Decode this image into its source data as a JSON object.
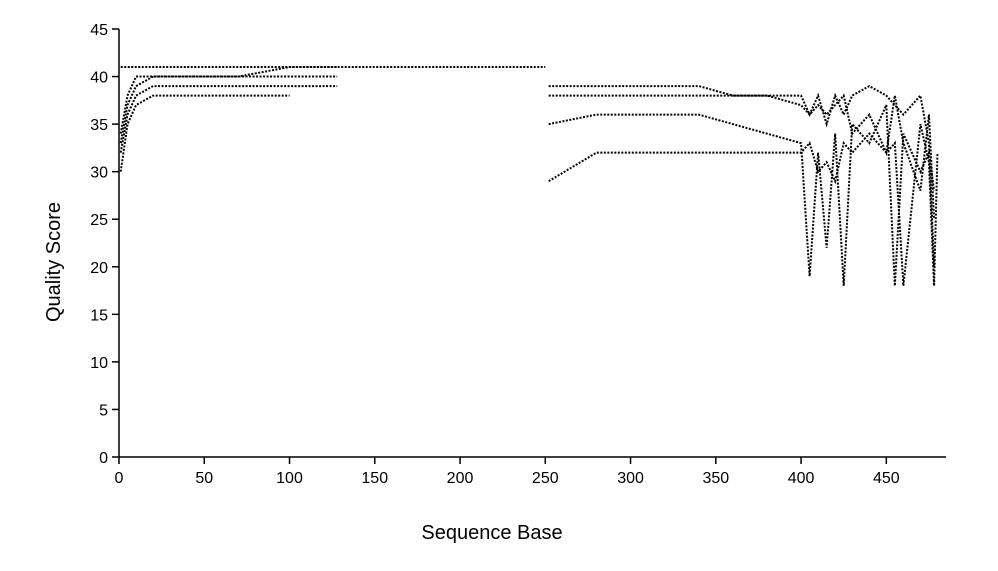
{
  "chart_data": {
    "type": "line",
    "x_label": "Sequence Base",
    "y_label": "Quality Score",
    "xlim": [
      0,
      485
    ],
    "ylim": [
      0,
      45
    ],
    "xticks": [
      0,
      50,
      100,
      150,
      200,
      250,
      300,
      350,
      400,
      450
    ],
    "yticks": [
      0,
      5,
      10,
      15,
      20,
      25,
      30,
      35,
      40,
      45
    ],
    "x": [
      1,
      5,
      10,
      20,
      40,
      70,
      100,
      128,
      250,
      252,
      280,
      320,
      340,
      360,
      380,
      400,
      405,
      410,
      415,
      420,
      425,
      430,
      440,
      450,
      455,
      460,
      470,
      475,
      478,
      480
    ],
    "series": [
      {
        "color": "#000000",
        "values": [
          41,
          41,
          41,
          41,
          41,
          41,
          41,
          41,
          41,
          null,
          null,
          null,
          null,
          null,
          null,
          null,
          null,
          null,
          null,
          null,
          null,
          null,
          null,
          null,
          null,
          null,
          null,
          null,
          null,
          null
        ]
      },
      {
        "color": "#000000",
        "values": [
          34,
          38,
          40,
          40,
          40,
          40,
          41,
          41,
          null,
          38,
          38,
          38,
          38,
          38,
          38,
          38,
          36,
          38,
          35,
          38,
          36,
          38,
          39,
          38,
          37,
          36,
          38,
          33,
          20,
          null
        ]
      },
      {
        "color": "#000000",
        "values": [
          32,
          36,
          38,
          39,
          39,
          39,
          39,
          39,
          null,
          35,
          36,
          36,
          36,
          35,
          34,
          33,
          19,
          32,
          22,
          34,
          18,
          35,
          33,
          37,
          18,
          34,
          30,
          32,
          28,
          null
        ]
      },
      {
        "color": "#000000",
        "values": [
          30,
          35,
          37,
          38,
          38,
          38,
          38,
          null,
          null,
          29,
          32,
          32,
          32,
          32,
          32,
          32,
          33,
          30,
          31,
          29,
          33,
          32,
          34,
          32,
          33,
          18,
          35,
          31,
          18,
          32
        ]
      },
      {
        "color": "#000000",
        "values": [
          33,
          37,
          39,
          40,
          40,
          40,
          40,
          40,
          null,
          39,
          39,
          39,
          39,
          38,
          38,
          37,
          36,
          37,
          36,
          37,
          38,
          34,
          36,
          32,
          38,
          33,
          28,
          36,
          25,
          null
        ]
      }
    ]
  }
}
